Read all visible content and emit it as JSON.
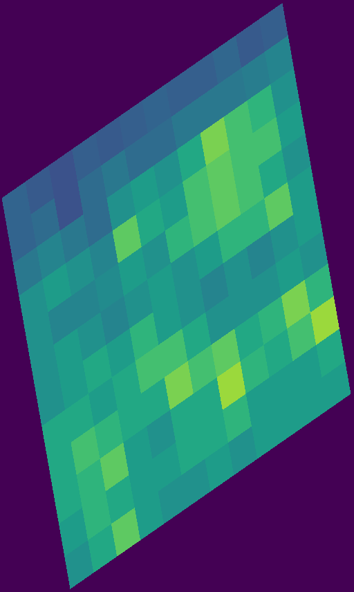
{
  "chart_data": {
    "type": "heatmap",
    "color": "viridis",
    "zlim": [
      0,
      1
    ],
    "tick_labels": false,
    "cells": [
      [
        0.32,
        0.28,
        0.25,
        0.3,
        0.28,
        0.3,
        0.32,
        0.3,
        0.3,
        0.33,
        0.28,
        0.3
      ],
      [
        0.32,
        0.35,
        0.25,
        0.35,
        0.4,
        0.35,
        0.35,
        0.4,
        0.4,
        0.4,
        0.42,
        0.45
      ],
      [
        0.4,
        0.45,
        0.4,
        0.35,
        0.5,
        0.55,
        0.5,
        0.6,
        0.8,
        0.7,
        0.65,
        0.5
      ],
      [
        0.5,
        0.55,
        0.5,
        0.45,
        0.75,
        0.6,
        0.55,
        0.7,
        0.75,
        0.7,
        0.7,
        0.55
      ],
      [
        0.5,
        0.45,
        0.45,
        0.48,
        0.55,
        0.5,
        0.65,
        0.7,
        0.75,
        0.7,
        0.6,
        0.5
      ],
      [
        0.5,
        0.55,
        0.5,
        0.45,
        0.5,
        0.55,
        0.5,
        0.55,
        0.65,
        0.65,
        0.75,
        0.55
      ],
      [
        0.5,
        0.55,
        0.6,
        0.55,
        0.65,
        0.55,
        0.5,
        0.45,
        0.5,
        0.45,
        0.5,
        0.55
      ],
      [
        0.6,
        0.6,
        0.55,
        0.6,
        0.7,
        0.7,
        0.6,
        0.5,
        0.5,
        0.5,
        0.55,
        0.5
      ],
      [
        0.6,
        0.7,
        0.65,
        0.6,
        0.6,
        0.8,
        0.7,
        0.75,
        0.6,
        0.65,
        0.8,
        0.65
      ],
      [
        0.6,
        0.65,
        0.75,
        0.55,
        0.5,
        0.6,
        0.6,
        0.85,
        0.65,
        0.6,
        0.7,
        0.85
      ],
      [
        0.55,
        0.65,
        0.6,
        0.55,
        0.55,
        0.6,
        0.6,
        0.65,
        0.55,
        0.55,
        0.55,
        0.6
      ],
      [
        0.5,
        0.6,
        0.75,
        0.55,
        0.5,
        0.5,
        0.55,
        0.5,
        0.55,
        0.55,
        0.55,
        0.55
      ]
    ]
  }
}
